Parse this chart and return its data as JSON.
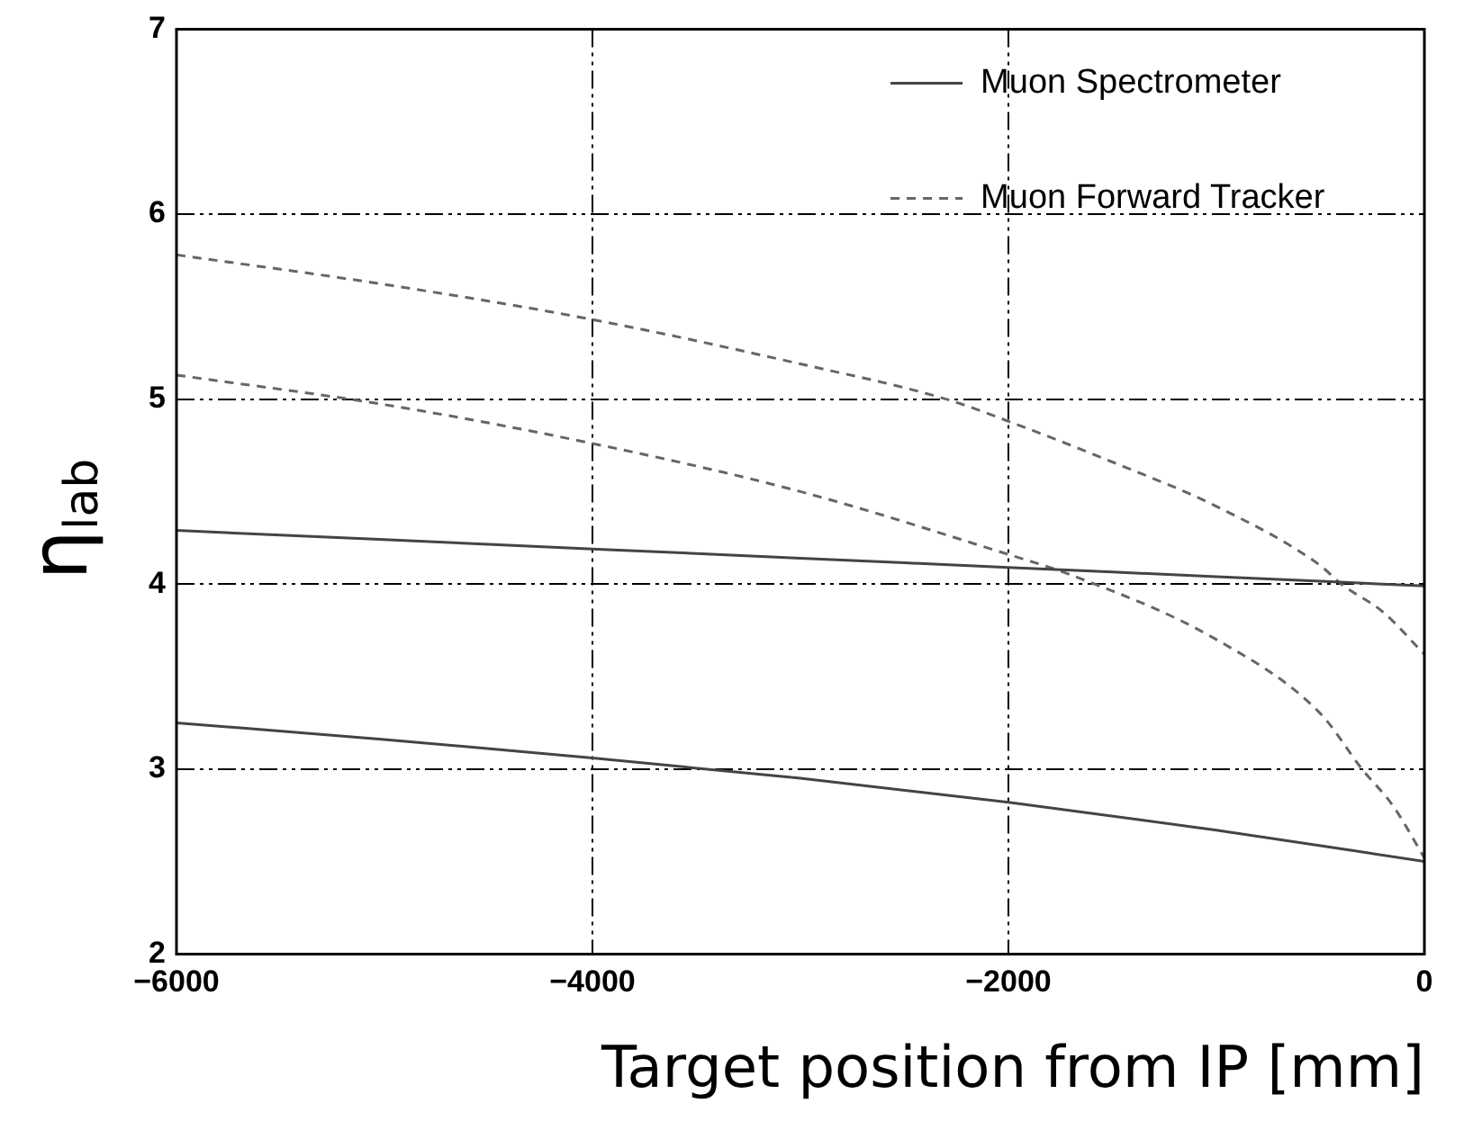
{
  "chart_data": {
    "type": "line",
    "xlabel": "Target position from IP [mm]",
    "ylabel": "η$_{lab}$",
    "xlim": [
      -6000,
      0
    ],
    "ylim": [
      2,
      7
    ],
    "xticks": [
      -6000,
      -4000,
      -2000,
      0
    ],
    "yticks": [
      2,
      3,
      4,
      5,
      6,
      7
    ],
    "grid": true,
    "legend": "top right",
    "marker": "none",
    "series": [
      {
        "name": "Muon Spectrometer",
        "color": "#444444",
        "line_style": "solid",
        "x": [
          -6000,
          -5000,
          -4000,
          -3000,
          -2000,
          -1000,
          0
        ],
        "values": [
          4.29,
          4.24,
          4.19,
          4.14,
          4.09,
          4.04,
          3.99
        ]
      },
      {
        "color": "#444444",
        "line_style": "solid",
        "x": [
          -6000,
          -5000,
          -4000,
          -3000,
          -2000,
          -1000,
          0
        ],
        "values": [
          3.25,
          3.16,
          3.06,
          2.95,
          2.82,
          2.67,
          2.5
        ]
      },
      {
        "name": "Muon Forward Tracker",
        "color": "#666666",
        "line_style": "dashed",
        "x": [
          -6000,
          -5000,
          -4000,
          -3000,
          -2300,
          -2000,
          -1500,
          -1000,
          -500,
          -400,
          -200,
          0
        ],
        "values": [
          5.78,
          5.62,
          5.43,
          5.19,
          5.0,
          4.88,
          4.66,
          4.42,
          4.1,
          4.0,
          3.85,
          3.62
        ]
      },
      {
        "color": "#666666",
        "line_style": "dashed",
        "x": [
          -6000,
          -5000,
          -4000,
          -3000,
          -2000,
          -1700,
          -1000,
          -500,
          -300,
          -150,
          0
        ],
        "values": [
          5.13,
          4.97,
          4.76,
          4.5,
          4.16,
          4.05,
          3.7,
          3.3,
          3.0,
          2.8,
          2.52
        ]
      }
    ]
  }
}
